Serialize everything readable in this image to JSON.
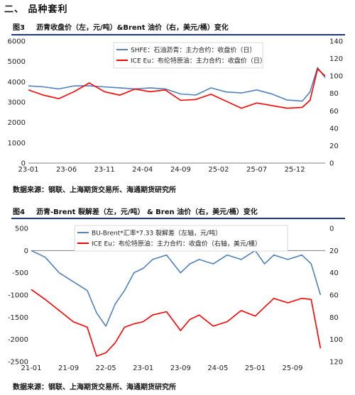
{
  "section": {
    "title": "二、   品种套利"
  },
  "figures": [
    {
      "number": "图3",
      "title": "沥青收盘价（左，元/吨）&Brent 油价（右，美元/桶）变化",
      "source": "数据来源：钢联、上海期货交易所、海通期货研究所"
    },
    {
      "number": "图4",
      "title": "沥青-Brent 裂解差（左，元/吨） & Bren 油价（右，美元/桶）变化",
      "source": "数据来源：钢联、上海期货交易所、海通期货研究所"
    }
  ],
  "chart_data": [
    {
      "type": "line",
      "x_ticks": [
        "23-01",
        "23-06",
        "23-11",
        "24-04",
        "24-09",
        "25-02",
        "25-07",
        "25-12"
      ],
      "y_left": {
        "ticks": [
          0,
          1000,
          2000,
          3000,
          4000,
          5000,
          6000
        ],
        "ylim": [
          0,
          6000
        ]
      },
      "y_right": {
        "ticks": [
          0,
          20,
          40,
          60,
          80,
          100,
          120,
          140
        ],
        "ylim": [
          0,
          140
        ]
      },
      "series": [
        {
          "name": "SHFE：石油沥青：主力合约：收盘价（日）",
          "axis": "left",
          "color": "#4f81bd",
          "points": [
            [
              "23-01",
              3800
            ],
            [
              "23-03",
              3750
            ],
            [
              "23-05",
              3650
            ],
            [
              "23-07",
              3800
            ],
            [
              "23-09",
              3800
            ],
            [
              "23-11",
              3750
            ],
            [
              "24-01",
              3700
            ],
            [
              "24-03",
              3650
            ],
            [
              "24-05",
              3700
            ],
            [
              "24-07",
              3650
            ],
            [
              "24-09",
              3400
            ],
            [
              "24-11",
              3350
            ],
            [
              "25-01",
              3700
            ],
            [
              "25-03",
              3500
            ],
            [
              "25-05",
              3450
            ],
            [
              "25-07",
              3600
            ],
            [
              "25-09",
              3400
            ],
            [
              "25-11",
              3100
            ],
            [
              "26-01",
              3050
            ],
            [
              "26-02",
              3500
            ],
            [
              "26-03",
              4700
            ],
            [
              "26-04",
              4200
            ]
          ]
        },
        {
          "name": "ICE Eu：布伦特原油：主力合约：收盘价（日）",
          "axis": "right",
          "color": "#ff0000",
          "points": [
            [
              "23-01",
              84
            ],
            [
              "23-03",
              78
            ],
            [
              "23-05",
              74
            ],
            [
              "23-07",
              82
            ],
            [
              "23-09",
              92
            ],
            [
              "23-11",
              82
            ],
            [
              "24-01",
              78
            ],
            [
              "24-03",
              85
            ],
            [
              "24-05",
              82
            ],
            [
              "24-07",
              84
            ],
            [
              "24-09",
              72
            ],
            [
              "24-11",
              73
            ],
            [
              "25-01",
              79
            ],
            [
              "25-03",
              71
            ],
            [
              "25-05",
              63
            ],
            [
              "25-07",
              69
            ],
            [
              "25-09",
              66
            ],
            [
              "25-11",
              63
            ],
            [
              "26-01",
              64
            ],
            [
              "26-02",
              72
            ],
            [
              "26-03",
              108
            ],
            [
              "26-04",
              100
            ]
          ]
        }
      ]
    },
    {
      "type": "line",
      "x_ticks": [
        "21-01",
        "21-09",
        "22-05",
        "23-01",
        "23-09",
        "24-05",
        "25-01",
        "25-09"
      ],
      "y_left": {
        "ticks": [
          500,
          0,
          -500,
          -1000,
          -1500,
          -2000,
          -2500
        ],
        "ylim": [
          -2500,
          500
        ]
      },
      "y_right": {
        "ticks": [
          0,
          20,
          40,
          60,
          80,
          100,
          120
        ],
        "ylim": [
          0,
          120
        ],
        "inverted": true
      },
      "series": [
        {
          "name": "BU-Brent*汇率*7.33 裂解差（左轴，元/吨）",
          "axis": "left",
          "color": "#4f81bd",
          "points": [
            [
              "21-01",
              0
            ],
            [
              "21-04",
              -150
            ],
            [
              "21-07",
              -500
            ],
            [
              "21-10",
              -700
            ],
            [
              "22-01",
              -900
            ],
            [
              "22-03",
              -1400
            ],
            [
              "22-05",
              -1700
            ],
            [
              "22-07",
              -1200
            ],
            [
              "22-09",
              -900
            ],
            [
              "22-11",
              -500
            ],
            [
              "23-01",
              -400
            ],
            [
              "23-03",
              -200
            ],
            [
              "23-06",
              -100
            ],
            [
              "23-09",
              -500
            ],
            [
              "23-11",
              -300
            ],
            [
              "24-01",
              -200
            ],
            [
              "24-04",
              -300
            ],
            [
              "24-07",
              -100
            ],
            [
              "24-10",
              -200
            ],
            [
              "25-01",
              0
            ],
            [
              "25-03",
              -300
            ],
            [
              "25-05",
              -100
            ],
            [
              "25-08",
              -200
            ],
            [
              "25-11",
              -100
            ],
            [
              "26-01",
              -300
            ],
            [
              "26-03",
              -1000
            ]
          ]
        },
        {
          "name": "ICE Eu：布伦特原油：主力合约：收盘价（右轴，美元/桶）",
          "axis": "right",
          "color": "#ff0000",
          "points": [
            [
              "21-01",
              55
            ],
            [
              "21-04",
              64
            ],
            [
              "21-07",
              74
            ],
            [
              "21-10",
              84
            ],
            [
              "22-01",
              89
            ],
            [
              "22-03",
              115
            ],
            [
              "22-05",
              112
            ],
            [
              "22-07",
              103
            ],
            [
              "22-09",
              89
            ],
            [
              "22-11",
              86
            ],
            [
              "23-01",
              84
            ],
            [
              "23-03",
              78
            ],
            [
              "23-06",
              75
            ],
            [
              "23-09",
              92
            ],
            [
              "23-11",
              82
            ],
            [
              "24-01",
              78
            ],
            [
              "24-04",
              88
            ],
            [
              "24-07",
              84
            ],
            [
              "24-10",
              74
            ],
            [
              "25-01",
              79
            ],
            [
              "25-03",
              71
            ],
            [
              "25-05",
              63
            ],
            [
              "25-08",
              67
            ],
            [
              "25-11",
              63
            ],
            [
              "26-01",
              64
            ],
            [
              "26-03",
              108
            ]
          ]
        }
      ]
    }
  ]
}
